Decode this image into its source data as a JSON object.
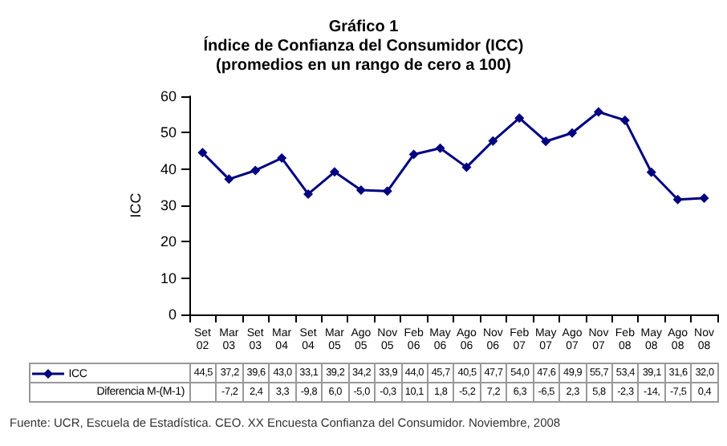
{
  "chart_data": {
    "type": "line",
    "title": "Gráfico 1\nÍndice de Confianza del Consumidor (ICC)\n(promedios en un rango de cero a 100)",
    "ylabel": "ICC",
    "categories": [
      "Set 02",
      "Mar 03",
      "Set 03",
      "Mar 04",
      "Set 04",
      "Mar 05",
      "Ago 05",
      "Nov 05",
      "Feb 06",
      "May 06",
      "Ago 06",
      "Nov 06",
      "Feb 07",
      "May 07",
      "Ago 07",
      "Nov 07",
      "Feb 08",
      "May 08",
      "Ago 08",
      "Nov 08"
    ],
    "series": [
      {
        "name": "ICC",
        "color": "#000080",
        "values": [
          44.5,
          37.2,
          39.6,
          43.0,
          33.1,
          39.2,
          34.2,
          33.9,
          44.0,
          45.7,
          40.5,
          47.7,
          54.0,
          47.6,
          49.9,
          55.7,
          53.4,
          39.1,
          31.6,
          32.0
        ],
        "value_labels": [
          "44,5",
          "37,2",
          "39,6",
          "43,0",
          "33,1",
          "39,2",
          "34,2",
          "33,9",
          "44,0",
          "45,7",
          "40,5",
          "47,7",
          "54,0",
          "47,6",
          "49,9",
          "55,7",
          "53,4",
          "39,1",
          "31,6",
          "32,0"
        ]
      }
    ],
    "annotations": [
      "Diferencia M-(M-1)",
      "-7,2",
      "2,4",
      "3,3",
      "-9,8",
      "6,0",
      "-5,0",
      "-0,3",
      "10,1",
      "1,8",
      "-5,2",
      "7,2",
      "6,3",
      "-6,5",
      "2,3",
      "5,8",
      "-2,3",
      "-14,",
      "-7,5",
      "0,4",
      "Fuente: UCR, Escuela de Estadística. CEO. XX Encuesta Confianza del Consumidor. Noviembre, 2008"
    ],
    "ylim": [
      0,
      60
    ],
    "yticks": [
      0,
      10,
      20,
      30,
      40,
      50,
      60
    ],
    "grid": false,
    "legend": "bottom",
    "marker": "diamond",
    "line_style": "solid"
  }
}
